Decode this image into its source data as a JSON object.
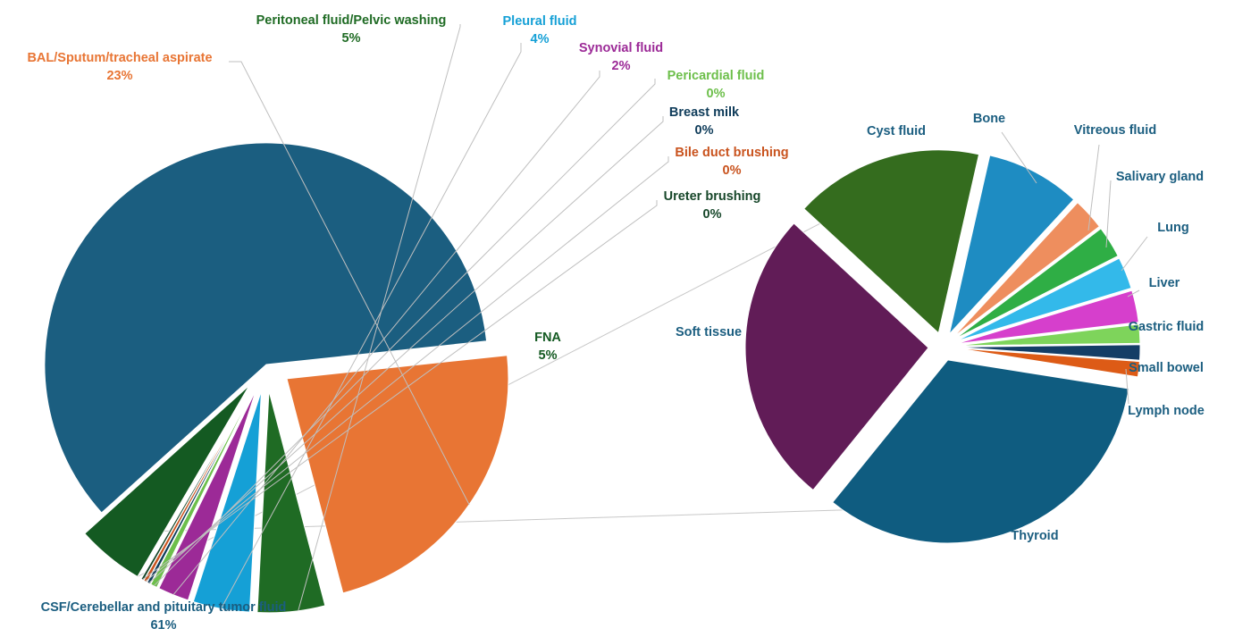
{
  "chart_data": {
    "type": "pie",
    "subtype": "pie-of-pie",
    "title": "",
    "primary": [
      {
        "label": "CSF/Cerebellar and pituitary tumor fluid",
        "value_text": "61%",
        "value": 61.0,
        "color": "#1b5e80"
      },
      {
        "label": "BAL/Sputum/tracheal aspirate",
        "value_text": "23%",
        "value": 23.0,
        "color": "#e87534"
      },
      {
        "label": "Peritoneal fluid/Pelvic washing",
        "value_text": "5%",
        "value": 5.0,
        "color": "#1f6b24"
      },
      {
        "label": "Pleural fluid",
        "value_text": "4%",
        "value": 4.2,
        "color": "#15a0d6"
      },
      {
        "label": "Synovial fluid",
        "value_text": "2%",
        "value": 2.3,
        "color": "#9c2a97"
      },
      {
        "label": "Pericardial fluid",
        "value_text": "0%",
        "value": 0.5,
        "color": "#6dbf4b"
      },
      {
        "label": "Breast milk",
        "value_text": "0%",
        "value": 0.25,
        "color": "#0f3c5a"
      },
      {
        "label": "Bile duct brushing",
        "value_text": "0%",
        "value": 0.25,
        "color": "#c9531e"
      },
      {
        "label": "Ureter brushing",
        "value_text": "0%",
        "value": 0.2,
        "color": "#17472a"
      },
      {
        "label": "FNA",
        "value_text": "5%",
        "value": 5.0,
        "color": "#145a22"
      }
    ],
    "secondary_source": "FNA",
    "secondary": [
      {
        "label": "Thyroid",
        "value": 32.0,
        "color": "#0f5c80"
      },
      {
        "label": "Soft tissue",
        "value": 25.0,
        "color": "#611c57"
      },
      {
        "label": "Cyst fluid",
        "value": 16.0,
        "color": "#346c1e"
      },
      {
        "label": "Bone",
        "value": 8.0,
        "color": "#1e8cc2"
      },
      {
        "label": "Vitreous fluid",
        "value": 2.7,
        "color": "#ee8e5e"
      },
      {
        "label": "Salivary gland",
        "value": 2.7,
        "color": "#2fae45"
      },
      {
        "label": "Lung",
        "value": 2.7,
        "color": "#33b9ea"
      },
      {
        "label": "Liver",
        "value": 2.7,
        "color": "#d63fcc"
      },
      {
        "label": "Gastric fluid",
        "value": 1.6,
        "color": "#7ed45b"
      },
      {
        "label": "Small bowel",
        "value": 1.3,
        "color": "#143e66"
      },
      {
        "label": "Lymph node",
        "value": 1.3,
        "color": "#dd5b16"
      }
    ]
  }
}
